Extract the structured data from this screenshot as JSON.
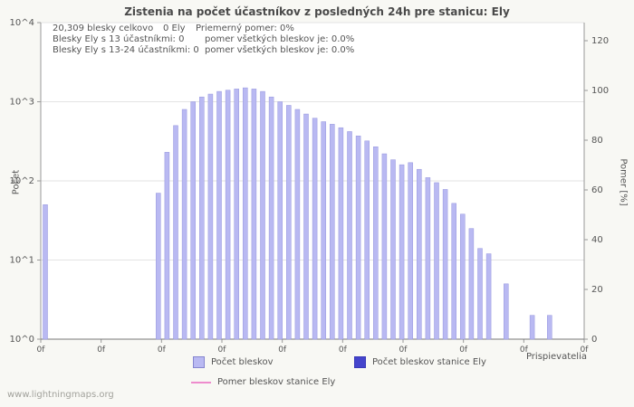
{
  "stats": {
    "total": "20,309 blesky celkovo",
    "station_count": "0 Ely",
    "avg_ratio": "Priemerný pomer: 0%",
    "line2_left": "Blesky Ely s 13 účastníkmi: 0",
    "line2_right": "pomer všetkých bleskov je: 0.0%",
    "line3_left": "Blesky Ely s 13-24 účastníkmi: 0",
    "line3_right": "pomer všetkých bleskov je: 0.0%"
  },
  "footer": "www.lightningmaps.org",
  "chart_data": {
    "type": "bar",
    "title": "Zistenia na počet účastníkov z posledných 24h pre stanicu: Ely",
    "xlabel": "Prispievatelia",
    "ylabel_left": "Počet",
    "ylabel_right": "Pomer [%]",
    "y_left_scale": "log10",
    "y_left_ticks": [
      "10^0",
      "10^1",
      "10^2",
      "10^3",
      "10^4"
    ],
    "y_right_ticks": [
      0,
      20,
      40,
      60,
      80,
      100,
      120
    ],
    "y_right_range": [
      0,
      120
    ],
    "x_tick_labels": [
      "0f",
      "0f",
      "0f",
      "0f",
      "0f",
      "0f",
      "0f",
      "0f",
      "0f",
      "0f"
    ],
    "grid": "horizontal-decades",
    "legend_position": "bottom",
    "series": [
      {
        "name": "Počet bleskov",
        "type": "bar",
        "color": "#b9b9f2",
        "border": "#9595dd",
        "values": [
          50,
          null,
          null,
          null,
          null,
          null,
          null,
          null,
          null,
          null,
          null,
          null,
          null,
          70,
          230,
          500,
          800,
          1000,
          1150,
          1250,
          1350,
          1400,
          1450,
          1500,
          1450,
          1350,
          1150,
          1000,
          900,
          800,
          700,
          620,
          560,
          520,
          470,
          420,
          370,
          320,
          270,
          220,
          185,
          160,
          170,
          140,
          110,
          95,
          78,
          52,
          38,
          25,
          14,
          12,
          null,
          5,
          null,
          null,
          2,
          null,
          2,
          null,
          null,
          null
        ]
      },
      {
        "name": "Počet bleskov stanice Ely",
        "type": "bar",
        "color": "#4444cc",
        "border": "#3a3ab8",
        "values": []
      },
      {
        "name": "Pomer bleskov stanice Ely",
        "type": "line",
        "color": "#ee8ccd",
        "values": []
      }
    ]
  }
}
